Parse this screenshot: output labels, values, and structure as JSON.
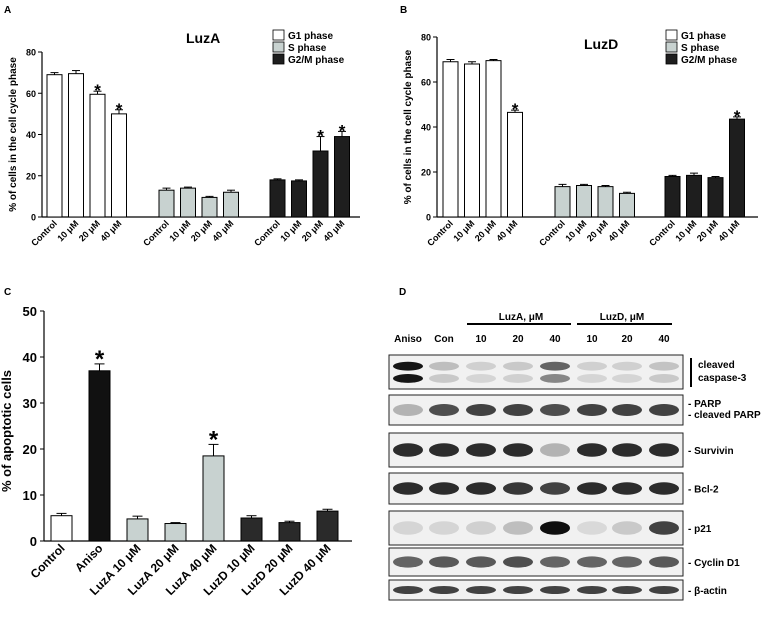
{
  "panel_letters": {
    "a": "A",
    "b": "B",
    "c": "C",
    "d": "D"
  },
  "colors": {
    "g1": "#ffffff",
    "s": "#c8d2d0",
    "g2m": "#1e1e1e",
    "aniso": "#111111",
    "edge": "#000000"
  },
  "chart_data": [
    {
      "panel": "A",
      "type": "bar",
      "title": "LuzA",
      "xlabel": "",
      "ylabel": "% of cells in the cell cycle phase",
      "ylim": [
        0,
        80
      ],
      "yticks": [
        "0",
        "20",
        "40",
        "60",
        "80"
      ],
      "categories": [
        "Control",
        "10 μM",
        "20 μM",
        "40 μM"
      ],
      "legend": [
        "G1 phase",
        "S phase",
        "G2/M phase"
      ],
      "legend_position": "top-right",
      "series": [
        {
          "name": "G1 phase",
          "values": [
            69,
            69.5,
            59.5,
            50
          ],
          "errors": [
            1,
            1.5,
            1.5,
            2
          ],
          "significant": [
            false,
            false,
            true,
            true
          ]
        },
        {
          "name": "S phase",
          "values": [
            13,
            14,
            9.5,
            12
          ],
          "errors": [
            1,
            0.5,
            0.5,
            1
          ],
          "significant": [
            false,
            false,
            false,
            false
          ]
        },
        {
          "name": "G2/M phase",
          "values": [
            18,
            17.5,
            32,
            39
          ],
          "errors": [
            0.5,
            0.5,
            7,
            2.5
          ],
          "significant": [
            false,
            false,
            true,
            true
          ]
        }
      ],
      "significance_mark": "*"
    },
    {
      "panel": "B",
      "type": "bar",
      "title": "LuzD",
      "xlabel": "",
      "ylabel": "% of cells in the cell cycle phase",
      "ylim": [
        0,
        80
      ],
      "yticks": [
        "0",
        "20",
        "40",
        "60",
        "80"
      ],
      "categories": [
        "Control",
        "10 μM",
        "20 μM",
        "40 μM"
      ],
      "legend": [
        "G1 phase",
        "S phase",
        "G2/M phase"
      ],
      "legend_position": "top-right",
      "series": [
        {
          "name": "G1 phase",
          "values": [
            69,
            68,
            69.5,
            46.5
          ],
          "errors": [
            1,
            1,
            0.5,
            1
          ],
          "significant": [
            false,
            false,
            false,
            true
          ]
        },
        {
          "name": "S phase",
          "values": [
            13.5,
            14,
            13.5,
            10.5
          ],
          "errors": [
            1,
            0.5,
            0.5,
            0.5
          ],
          "significant": [
            false,
            false,
            false,
            false
          ]
        },
        {
          "name": "G2/M phase",
          "values": [
            18,
            18.5,
            17.5,
            43.5
          ],
          "errors": [
            0.5,
            1,
            0.5,
            1
          ],
          "significant": [
            false,
            false,
            false,
            true
          ]
        }
      ],
      "significance_mark": "*"
    },
    {
      "panel": "C",
      "type": "bar",
      "title": "",
      "xlabel": "",
      "ylabel": "% of apoptotic cells",
      "ylim": [
        0,
        50
      ],
      "yticks": [
        "0",
        "10",
        "20",
        "30",
        "40",
        "50"
      ],
      "categories": [
        "Control",
        "Aniso",
        "LuzA 10 μM",
        "LuzA 20 μM",
        "LuzA 40 μM",
        "LuzD 10 μM",
        "LuzD 20 μM",
        "LuzD 40 μM"
      ],
      "values": [
        5.5,
        37,
        4.8,
        3.8,
        18.5,
        5,
        4,
        6.5
      ],
      "errors": [
        0.5,
        1.5,
        0.6,
        0.2,
        2.5,
        0.5,
        0.3,
        0.4
      ],
      "bar_colors": [
        "#ffffff",
        "#111111",
        "#c8d2d0",
        "#c8d2d0",
        "#c8d2d0",
        "#2a2a2a",
        "#2a2a2a",
        "#2a2a2a"
      ],
      "significant": [
        false,
        true,
        false,
        false,
        true,
        false,
        false,
        false
      ],
      "significance_mark": "*"
    }
  ],
  "western_blot": {
    "group_luza": "LuzA, μM",
    "group_luzd": "LuzD, μM",
    "lanes": [
      "Aniso",
      "Con",
      "10",
      "20",
      "40",
      "10",
      "20",
      "40"
    ],
    "rows": [
      {
        "labels": [
          "cleaved",
          "caspase-3"
        ],
        "bracket": true,
        "bands": [
          [
            0.95,
            0.95
          ],
          [
            0.2,
            0.15
          ],
          [
            0.12,
            0.1
          ],
          [
            0.15,
            0.12
          ],
          [
            0.6,
            0.45
          ],
          [
            0.12,
            0.1
          ],
          [
            0.12,
            0.1
          ],
          [
            0.18,
            0.15
          ]
        ]
      },
      {
        "labels": [
          "- PARP",
          "- cleaved PARP"
        ],
        "bracket": false,
        "bands": [
          [
            0.25
          ],
          [
            0.7
          ],
          [
            0.75
          ],
          [
            0.75
          ],
          [
            0.7
          ],
          [
            0.75
          ],
          [
            0.75
          ],
          [
            0.75
          ]
        ]
      },
      {
        "labels": [
          "- Survivin"
        ],
        "bracket": false,
        "bands": [
          [
            0.85
          ],
          [
            0.85
          ],
          [
            0.85
          ],
          [
            0.85
          ],
          [
            0.25
          ],
          [
            0.85
          ],
          [
            0.85
          ],
          [
            0.85
          ]
        ]
      },
      {
        "labels": [
          "- Bcl-2"
        ],
        "bracket": false,
        "bands": [
          [
            0.85
          ],
          [
            0.85
          ],
          [
            0.85
          ],
          [
            0.8
          ],
          [
            0.75
          ],
          [
            0.85
          ],
          [
            0.85
          ],
          [
            0.85
          ]
        ]
      },
      {
        "labels": [
          "- p21"
        ],
        "bracket": false,
        "bands": [
          [
            0.1
          ],
          [
            0.1
          ],
          [
            0.12
          ],
          [
            0.2
          ],
          [
            0.98
          ],
          [
            0.08
          ],
          [
            0.15
          ],
          [
            0.75
          ]
        ]
      },
      {
        "labels": [
          "- Cyclin D1"
        ],
        "bracket": false,
        "bands": [
          [
            0.6
          ],
          [
            0.65
          ],
          [
            0.65
          ],
          [
            0.7
          ],
          [
            0.6
          ],
          [
            0.6
          ],
          [
            0.6
          ],
          [
            0.65
          ]
        ]
      },
      {
        "labels": [
          "- β-actin"
        ],
        "bracket": false,
        "bands": [
          [
            0.75
          ],
          [
            0.75
          ],
          [
            0.75
          ],
          [
            0.75
          ],
          [
            0.75
          ],
          [
            0.75
          ],
          [
            0.75
          ],
          [
            0.75
          ]
        ]
      }
    ]
  }
}
